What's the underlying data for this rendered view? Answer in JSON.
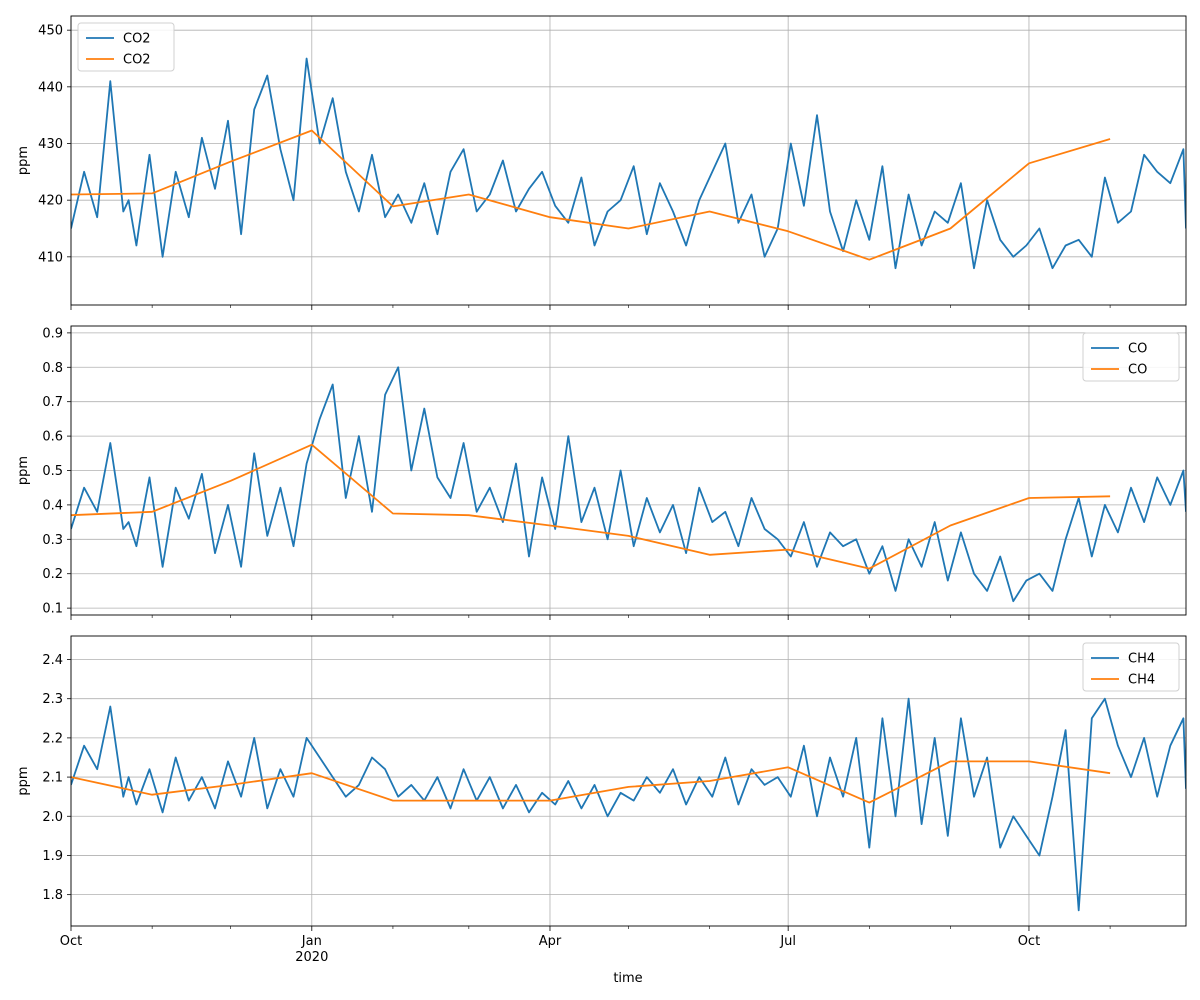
{
  "chart_data": [
    {
      "type": "line",
      "ylabel": "ppm",
      "ylim": [
        401.5,
        452.5
      ],
      "yticks": [
        410,
        420,
        430,
        440,
        450
      ],
      "ytick_labels": [
        "410",
        "420",
        "430",
        "440",
        "450"
      ],
      "legend": {
        "placement": "upper-left"
      },
      "series": [
        {
          "name": "CO2",
          "kind": "daily",
          "color": "#1f77b4",
          "x": [
            0,
            5,
            10,
            15,
            20,
            22,
            25,
            30,
            35,
            40,
            45,
            50,
            55,
            60,
            65,
            70,
            75,
            80,
            85,
            90,
            95,
            100,
            105,
            110,
            115,
            120,
            125,
            130,
            135,
            140,
            145,
            150,
            155,
            160,
            165,
            170,
            175,
            180,
            185,
            190,
            195,
            200,
            205,
            210,
            215,
            220,
            225,
            230,
            235,
            240,
            245,
            250,
            255,
            260,
            265,
            270,
            275,
            280,
            285,
            290,
            295,
            300,
            305,
            310,
            315,
            320,
            325,
            330,
            335,
            340,
            345,
            350,
            355,
            360,
            365,
            370,
            375,
            380,
            385,
            390,
            395,
            400,
            405,
            410,
            415,
            420,
            425,
            426
          ],
          "y": [
            415,
            425,
            417,
            441,
            418,
            420,
            412,
            428,
            410,
            425,
            417,
            431,
            422,
            434,
            414,
            436,
            442,
            429,
            420,
            445,
            430,
            438,
            425,
            418,
            428,
            417,
            421,
            416,
            423,
            414,
            425,
            429,
            418,
            421,
            427,
            418,
            422,
            425,
            419,
            416,
            424,
            412,
            418,
            420,
            426,
            414,
            423,
            418,
            412,
            420,
            425,
            430,
            416,
            421,
            410,
            415,
            430,
            419,
            435,
            418,
            411,
            420,
            413,
            426,
            408,
            421,
            412,
            418,
            416,
            423,
            408,
            420,
            413,
            410,
            412,
            415,
            408,
            412,
            413,
            410,
            424,
            416,
            418,
            428,
            425,
            423,
            429,
            415
          ]
        },
        {
          "name": "CO2",
          "kind": "monthly",
          "color": "#ff7f0e",
          "x": [
            0,
            31,
            61,
            92,
            123,
            152,
            183,
            213,
            244,
            274,
            305,
            336,
            366,
            397
          ],
          "y": [
            421,
            421.2,
            426.8,
            432.3,
            418.9,
            421,
            417,
            415,
            418,
            414.5,
            409.5,
            415,
            426.5,
            430.8
          ]
        }
      ]
    },
    {
      "type": "line",
      "ylabel": "ppm",
      "ylim": [
        0.08,
        0.92
      ],
      "yticks": [
        0.1,
        0.2,
        0.3,
        0.4,
        0.5,
        0.6,
        0.7,
        0.8,
        0.9
      ],
      "ytick_labels": [
        "0.1",
        "0.2",
        "0.3",
        "0.4",
        "0.5",
        "0.6",
        "0.7",
        "0.8",
        "0.9"
      ],
      "legend": {
        "placement": "upper-right"
      },
      "series": [
        {
          "name": "CO",
          "kind": "daily",
          "color": "#1f77b4",
          "x": [
            0,
            5,
            10,
            15,
            20,
            22,
            25,
            30,
            35,
            40,
            45,
            50,
            55,
            60,
            65,
            70,
            75,
            80,
            85,
            90,
            95,
            100,
            105,
            110,
            115,
            120,
            125,
            130,
            135,
            140,
            145,
            150,
            155,
            160,
            165,
            170,
            175,
            180,
            185,
            190,
            195,
            200,
            205,
            210,
            215,
            220,
            225,
            230,
            235,
            240,
            245,
            250,
            255,
            260,
            265,
            270,
            275,
            280,
            285,
            290,
            295,
            300,
            305,
            310,
            315,
            320,
            325,
            330,
            335,
            340,
            345,
            350,
            355,
            360,
            365,
            370,
            375,
            380,
            385,
            390,
            395,
            400,
            405,
            410,
            415,
            420,
            425,
            426
          ],
          "y": [
            0.33,
            0.45,
            0.38,
            0.58,
            0.33,
            0.35,
            0.28,
            0.48,
            0.22,
            0.45,
            0.36,
            0.49,
            0.26,
            0.4,
            0.22,
            0.55,
            0.31,
            0.45,
            0.28,
            0.52,
            0.65,
            0.75,
            0.42,
            0.6,
            0.38,
            0.72,
            0.8,
            0.5,
            0.68,
            0.48,
            0.42,
            0.58,
            0.38,
            0.45,
            0.35,
            0.52,
            0.25,
            0.48,
            0.33,
            0.6,
            0.35,
            0.45,
            0.3,
            0.5,
            0.28,
            0.42,
            0.32,
            0.4,
            0.26,
            0.45,
            0.35,
            0.38,
            0.28,
            0.42,
            0.33,
            0.3,
            0.25,
            0.35,
            0.22,
            0.32,
            0.28,
            0.3,
            0.2,
            0.28,
            0.15,
            0.3,
            0.22,
            0.35,
            0.18,
            0.32,
            0.2,
            0.15,
            0.25,
            0.12,
            0.18,
            0.2,
            0.15,
            0.3,
            0.42,
            0.25,
            0.4,
            0.32,
            0.45,
            0.35,
            0.48,
            0.4,
            0.5,
            0.38
          ]
        },
        {
          "name": "CO",
          "kind": "monthly",
          "color": "#ff7f0e",
          "x": [
            0,
            31,
            61,
            92,
            123,
            152,
            183,
            213,
            244,
            274,
            305,
            336,
            366,
            397
          ],
          "y": [
            0.37,
            0.38,
            0.47,
            0.575,
            0.375,
            0.37,
            0.34,
            0.31,
            0.255,
            0.27,
            0.215,
            0.34,
            0.42,
            0.425
          ]
        }
      ]
    },
    {
      "type": "line",
      "xlabel": "time",
      "ylabel": "ppm",
      "ylim": [
        1.72,
        2.46
      ],
      "yticks": [
        1.8,
        1.9,
        2.0,
        2.1,
        2.2,
        2.3,
        2.4
      ],
      "ytick_labels": [
        "1.8",
        "1.9",
        "2.0",
        "2.1",
        "2.2",
        "2.3",
        "2.4"
      ],
      "legend": {
        "placement": "upper-right"
      },
      "xlim": [
        0,
        426
      ],
      "xticks": [
        0,
        92,
        183,
        274,
        366
      ],
      "xtick_labels": [
        "Oct",
        "Jan",
        "Apr",
        "Jul",
        "Oct"
      ],
      "xtick_sublabels": [
        "",
        "2020",
        "",
        "",
        ""
      ],
      "minor_xticks": [
        31,
        61,
        123,
        152,
        213,
        244,
        305,
        336,
        397
      ],
      "series": [
        {
          "name": "CH4",
          "kind": "daily",
          "color": "#1f77b4",
          "x": [
            0,
            5,
            10,
            15,
            20,
            22,
            25,
            30,
            35,
            40,
            45,
            50,
            55,
            60,
            65,
            70,
            75,
            80,
            85,
            90,
            95,
            100,
            105,
            110,
            115,
            120,
            125,
            130,
            135,
            140,
            145,
            150,
            155,
            160,
            165,
            170,
            175,
            180,
            185,
            190,
            195,
            200,
            205,
            210,
            215,
            220,
            225,
            230,
            235,
            240,
            245,
            250,
            255,
            260,
            265,
            270,
            275,
            280,
            285,
            290,
            295,
            300,
            305,
            310,
            315,
            320,
            325,
            330,
            335,
            340,
            345,
            350,
            355,
            360,
            365,
            370,
            375,
            380,
            385,
            390,
            395,
            400,
            405,
            410,
            415,
            420,
            425,
            426
          ],
          "y": [
            2.08,
            2.18,
            2.12,
            2.28,
            2.05,
            2.1,
            2.03,
            2.12,
            2.01,
            2.15,
            2.04,
            2.1,
            2.02,
            2.14,
            2.05,
            2.2,
            2.02,
            2.12,
            2.05,
            2.2,
            2.15,
            2.1,
            2.05,
            2.08,
            2.15,
            2.12,
            2.05,
            2.08,
            2.04,
            2.1,
            2.02,
            2.12,
            2.04,
            2.1,
            2.02,
            2.08,
            2.01,
            2.06,
            2.03,
            2.09,
            2.02,
            2.08,
            2.0,
            2.06,
            2.04,
            2.1,
            2.06,
            2.12,
            2.03,
            2.1,
            2.05,
            2.15,
            2.03,
            2.12,
            2.08,
            2.1,
            2.05,
            2.18,
            2.0,
            2.15,
            2.05,
            2.2,
            1.92,
            2.25,
            2.0,
            2.3,
            1.98,
            2.2,
            1.95,
            2.25,
            2.05,
            2.15,
            1.92,
            2.0,
            1.95,
            1.9,
            2.05,
            2.22,
            1.76,
            2.25,
            2.3,
            2.18,
            2.1,
            2.2,
            2.05,
            2.18,
            2.25,
            2.07
          ]
        },
        {
          "name": "CH4",
          "kind": "monthly",
          "color": "#ff7f0e",
          "x": [
            0,
            31,
            61,
            92,
            123,
            152,
            183,
            213,
            244,
            274,
            305,
            336,
            366,
            397
          ],
          "y": [
            2.1,
            2.055,
            2.08,
            2.11,
            2.04,
            2.04,
            2.04,
            2.075,
            2.09,
            2.125,
            2.035,
            2.14,
            2.14,
            2.11
          ]
        }
      ]
    }
  ]
}
